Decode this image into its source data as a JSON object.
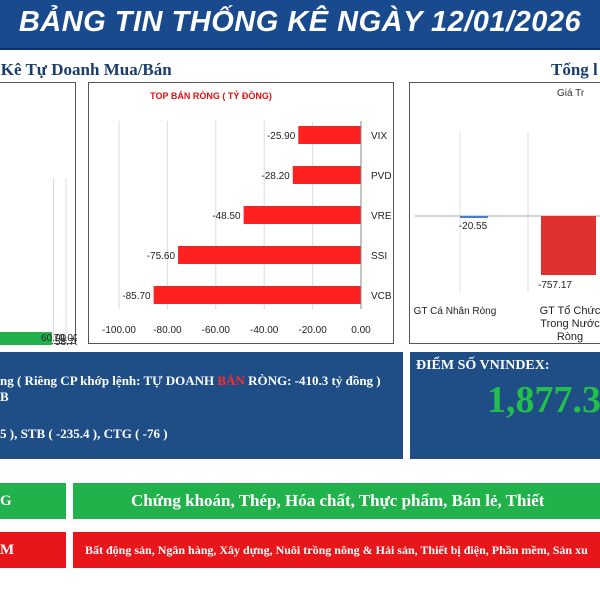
{
  "header": {
    "title": "BẢNG TIN THỐNG KÊ NGÀY 12/01/2026"
  },
  "sections": {
    "left_title": "g Kê Tự Doanh Mua/Bán",
    "right_title": "Tổng l"
  },
  "colors": {
    "header_bg": "#1a4a8e",
    "bar_red": "#ff2020",
    "bar_green": "#22b24c",
    "bar_blue": "#4a7bc8",
    "box_blue": "#1f4e87",
    "accent_green": "#22c04a"
  },
  "chart_data": [
    {
      "type": "bar",
      "orientation": "horizontal",
      "title": "",
      "categories": [
        "",
        ""
      ],
      "values": [
        58.7,
        60.0
      ],
      "data_labels": [
        "58.70",
        "60.00"
      ],
      "x_ticks": [
        "60.00",
        "70.00"
      ],
      "xlim": [
        0,
        70
      ]
    },
    {
      "type": "bar",
      "orientation": "horizontal",
      "title": "TOP BÁN RÒNG ( TỶ ĐỒNG)",
      "categories": [
        "VIX",
        "PVD",
        "VRE",
        "SSI",
        "VCB"
      ],
      "values": [
        -25.9,
        -28.2,
        -48.5,
        -75.6,
        -85.7
      ],
      "data_labels": [
        "-25.90",
        "-28.20",
        "-48.50",
        "-75.60",
        "-85.70"
      ],
      "x_ticks": [
        "-100.00",
        "-80.00",
        "-60.00",
        "-40.00",
        "-20.00",
        "0.00"
      ],
      "xlim": [
        -100,
        0
      ]
    },
    {
      "type": "bar",
      "orientation": "vertical",
      "title": "Giá Tr",
      "categories": [
        [
          "GT Cá Nhân Ròng"
        ],
        [
          "GT Tổ Chức",
          "Trong Nước",
          "Ròng"
        ]
      ],
      "values": [
        -20.55,
        -757.17
      ],
      "data_labels": [
        "-20.55",
        "-757.17"
      ]
    }
  ],
  "info": {
    "line1_pre": "ng ( Riêng CP khớp lệnh: TỰ DOANH ",
    "line1_red": "BÁN",
    "line1_post": " RÒNG: -410.3 tỷ đồng )",
    "line2": "B",
    "line3": "5 ), STB ( -235.4 ), CTG ( -76 )"
  },
  "vnindex": {
    "label": "ĐIỂM SỐ VNINDEX:",
    "value": "1,877.3"
  },
  "sectors": {
    "green_left": "G",
    "green_right": "Chứng khoán, Thép, Hóa chất, Thực phẩm, Bán lẻ, Thiết",
    "red_left": "M",
    "red_right": "Bất động sản, Ngân hàng, Xây dựng, Nuôi trồng nông & Hải sản, Thiết bị điện, Phần mềm, Sản xu"
  }
}
